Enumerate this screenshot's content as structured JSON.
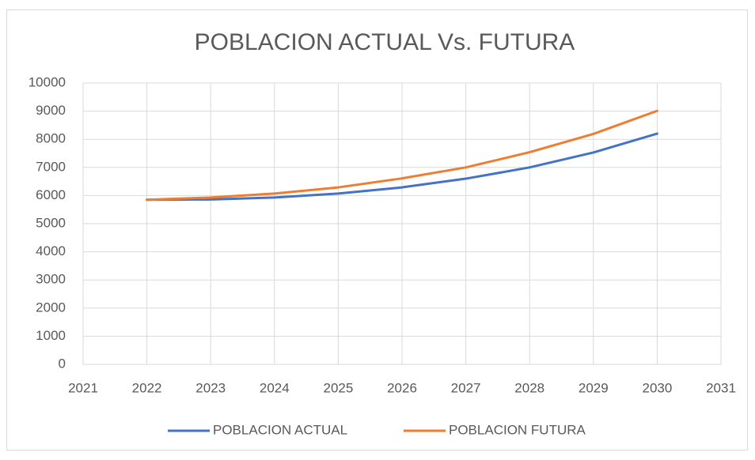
{
  "chart_data": {
    "type": "line",
    "title": "POBLACION ACTUAL Vs. FUTURA",
    "x": [
      2022,
      2023,
      2024,
      2025,
      2026,
      2027,
      2028,
      2029,
      2030
    ],
    "series": [
      {
        "name": "POBLACION ACTUAL",
        "color": "#4472c4",
        "values": [
          5850,
          5860,
          5930,
          6070,
          6290,
          6600,
          7000,
          7530,
          8200
        ]
      },
      {
        "name": "POBLACION FUTURA",
        "color": "#ed7d31",
        "values": [
          5850,
          5930,
          6070,
          6290,
          6610,
          7000,
          7540,
          8190,
          9010
        ]
      }
    ],
    "xlim": [
      2021,
      2031
    ],
    "xticks": [
      2021,
      2022,
      2023,
      2024,
      2025,
      2026,
      2027,
      2028,
      2029,
      2030,
      2031
    ],
    "ylim": [
      0,
      10000
    ],
    "yticks": [
      0,
      1000,
      2000,
      3000,
      4000,
      5000,
      6000,
      7000,
      8000,
      9000,
      10000
    ],
    "grid": true,
    "legend": "bottom"
  }
}
